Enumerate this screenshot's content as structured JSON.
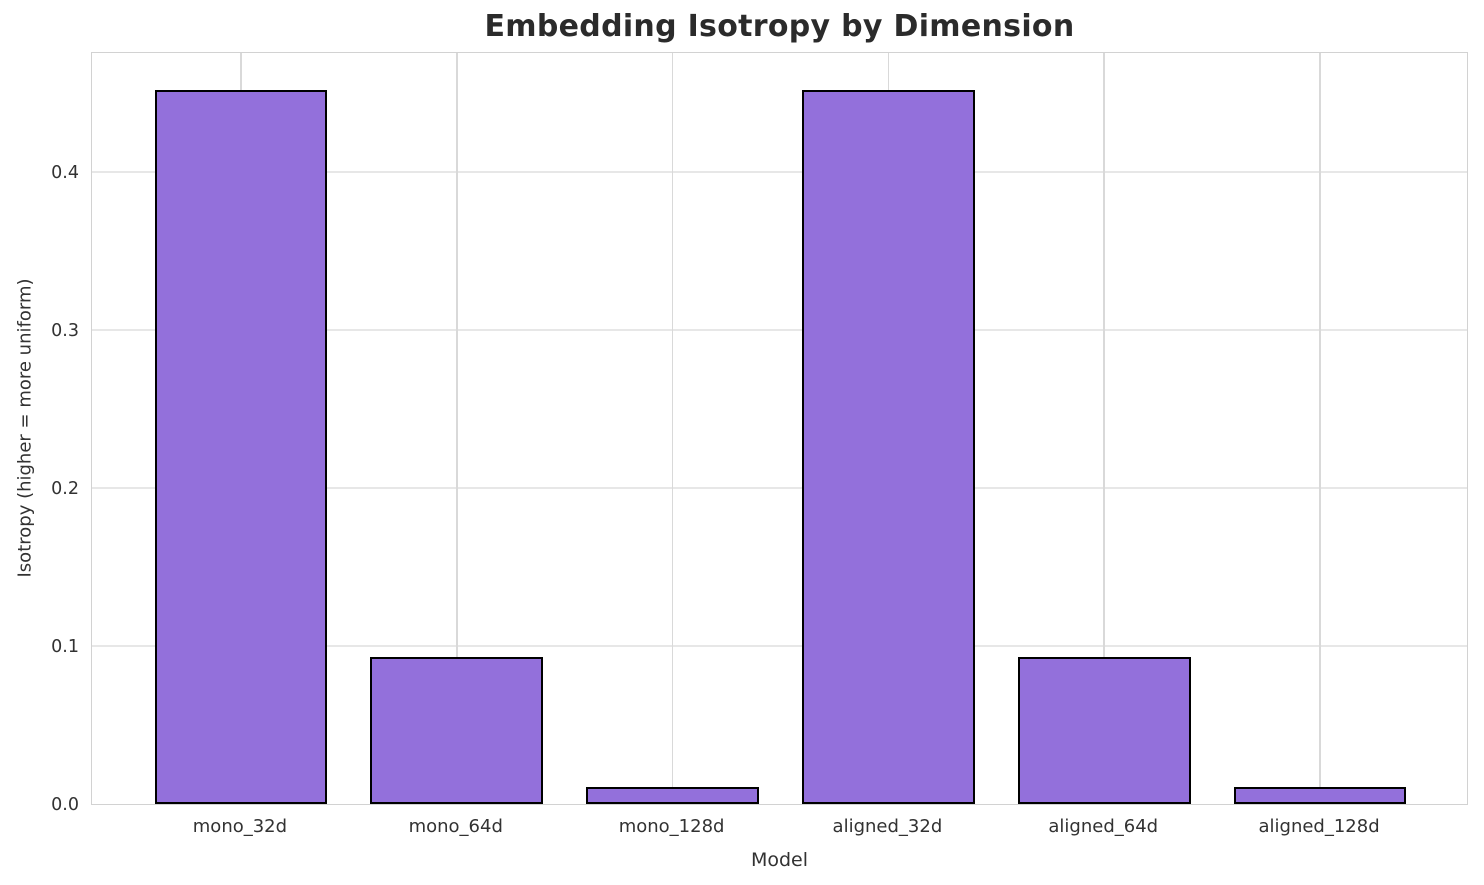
{
  "chart_data": {
    "type": "bar",
    "title": "Embedding Isotropy by Dimension",
    "xlabel": "Model",
    "ylabel": "Isotropy (higher = more uniform)",
    "categories": [
      "mono_32d",
      "mono_64d",
      "mono_128d",
      "aligned_32d",
      "aligned_64d",
      "aligned_128d"
    ],
    "values": [
      0.452,
      0.093,
      0.011,
      0.452,
      0.093,
      0.011
    ],
    "yticks": [
      0.0,
      0.1,
      0.2,
      0.3,
      0.4
    ],
    "ylim": [
      0,
      0.4766
    ],
    "bar_color": "#9370db",
    "bar_edge_color": "#000000",
    "grid": true,
    "legend": "none",
    "background_color": "#ffffff"
  }
}
